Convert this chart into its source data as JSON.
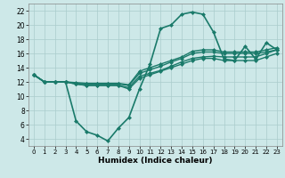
{
  "xlabel": "Humidex (Indice chaleur)",
  "ylabel": "",
  "background_color": "#cde8e8",
  "grid_color": "#aacccc",
  "line_color": "#1a7a6a",
  "xlim": [
    -0.5,
    23.5
  ],
  "ylim": [
    3,
    23
  ],
  "yticks": [
    4,
    6,
    8,
    10,
    12,
    14,
    16,
    18,
    20,
    22
  ],
  "xticks": [
    0,
    1,
    2,
    3,
    4,
    5,
    6,
    7,
    8,
    9,
    10,
    11,
    12,
    13,
    14,
    15,
    16,
    17,
    18,
    19,
    20,
    21,
    22,
    23
  ],
  "lines": [
    {
      "x": [
        0,
        1,
        2,
        3,
        4,
        5,
        6,
        7,
        8,
        9,
        10,
        11,
        12,
        13,
        14,
        15,
        16,
        17,
        18,
        19,
        20,
        21,
        22,
        23
      ],
      "y": [
        13,
        12,
        12,
        12,
        6.5,
        5,
        4.5,
        3.7,
        5.5,
        7,
        11,
        14.5,
        19.5,
        20,
        21.5,
        21.8,
        21.5,
        19,
        15.2,
        15.0,
        17.0,
        15.2,
        17.5,
        16.5
      ],
      "marker": "D",
      "markersize": 2.0,
      "linewidth": 1.2
    },
    {
      "x": [
        0,
        1,
        2,
        3,
        4,
        5,
        6,
        7,
        8,
        9,
        10,
        11,
        12,
        13,
        14,
        15,
        16,
        17,
        18,
        19,
        20,
        21,
        22,
        23
      ],
      "y": [
        13,
        12,
        12,
        12,
        11.7,
        11.5,
        11.5,
        11.5,
        11.5,
        11.2,
        12.8,
        13.2,
        13.6,
        14.2,
        14.8,
        15.3,
        15.5,
        15.6,
        15.5,
        15.5,
        15.5,
        15.5,
        16.0,
        16.5
      ],
      "marker": "D",
      "markersize": 2.0,
      "linewidth": 1.0
    },
    {
      "x": [
        0,
        1,
        2,
        3,
        4,
        5,
        6,
        7,
        8,
        9,
        10,
        11,
        12,
        13,
        14,
        15,
        16,
        17,
        18,
        19,
        20,
        21,
        22,
        23
      ],
      "y": [
        13,
        12,
        12,
        12,
        11.8,
        11.7,
        11.7,
        11.7,
        11.7,
        11.5,
        13.2,
        13.7,
        14.2,
        14.8,
        15.3,
        16.0,
        16.2,
        16.2,
        16.0,
        16.0,
        16.0,
        16.0,
        16.2,
        16.5
      ],
      "marker": "D",
      "markersize": 2.0,
      "linewidth": 1.0
    },
    {
      "x": [
        0,
        1,
        2,
        3,
        4,
        5,
        6,
        7,
        8,
        9,
        10,
        11,
        12,
        13,
        14,
        15,
        16,
        17,
        18,
        19,
        20,
        21,
        22,
        23
      ],
      "y": [
        13,
        12,
        12,
        12,
        11.9,
        11.8,
        11.8,
        11.8,
        11.8,
        11.6,
        13.5,
        14.0,
        14.5,
        15.0,
        15.5,
        16.3,
        16.5,
        16.5,
        16.2,
        16.2,
        16.2,
        16.2,
        16.5,
        16.8
      ],
      "marker": "D",
      "markersize": 2.0,
      "linewidth": 1.0
    },
    {
      "x": [
        0,
        1,
        2,
        3,
        4,
        5,
        6,
        7,
        8,
        9,
        10,
        11,
        12,
        13,
        14,
        15,
        16,
        17,
        18,
        19,
        20,
        21,
        22,
        23
      ],
      "y": [
        13,
        12,
        12,
        12,
        11.7,
        11.5,
        11.5,
        11.5,
        11.5,
        11.0,
        12.5,
        13.0,
        13.5,
        14.0,
        14.5,
        15.0,
        15.3,
        15.3,
        15.0,
        15.0,
        15.0,
        15.0,
        15.5,
        16.0
      ],
      "marker": "D",
      "markersize": 2.0,
      "linewidth": 1.0
    }
  ]
}
